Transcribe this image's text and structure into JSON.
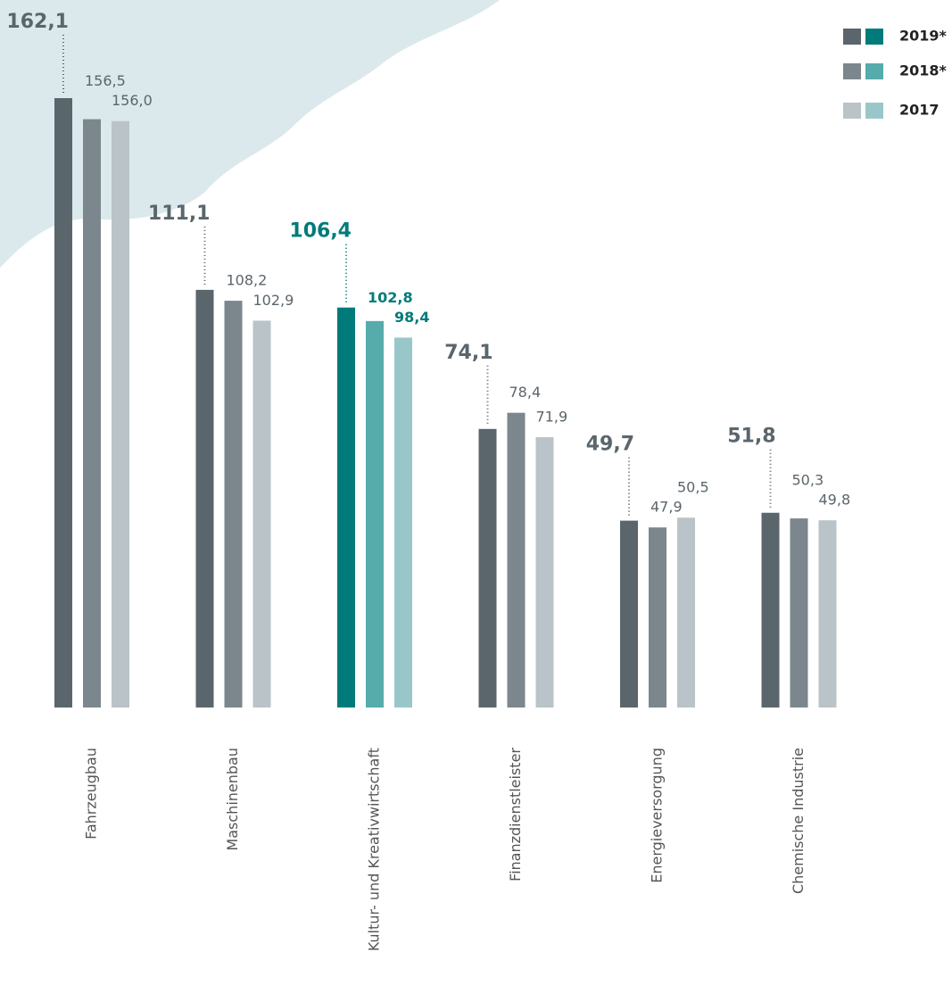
{
  "chart_data": {
    "type": "bar",
    "categories": [
      "Fahrzeugbau",
      "Maschinenbau",
      "Kultur- und Kreativwirtschaft",
      "Finanzdienstleister",
      "Energieversorgung",
      "Chemische Industrie"
    ],
    "highlighted_categories": [
      "Kultur- und Kreativwirtschaft"
    ],
    "series": [
      {
        "name": "2019*",
        "color": "#5a666c",
        "highlight_color": "#007b7a",
        "values": [
          162.1,
          111.1,
          106.4,
          74.1,
          49.7,
          51.8
        ],
        "value_labels": [
          "162,1",
          "111,1",
          "106,4",
          "74,1",
          "49,7",
          "51,8"
        ]
      },
      {
        "name": "2018*",
        "color": "#7b878d",
        "highlight_color": "#56abab",
        "values": [
          156.5,
          108.2,
          102.8,
          78.4,
          47.9,
          50.3
        ],
        "value_labels": [
          "156,5",
          "108,2",
          "102,8",
          "78,4",
          "47,9",
          "50,3"
        ]
      },
      {
        "name": "2017",
        "color": "#bac3c7",
        "highlight_color": "#99c7c9",
        "values": [
          156.0,
          102.9,
          98.4,
          71.9,
          50.5,
          49.8
        ],
        "value_labels": [
          "156,0",
          "102,9",
          "98,4",
          "71,9",
          "50,5",
          "49,8"
        ]
      }
    ]
  }
}
